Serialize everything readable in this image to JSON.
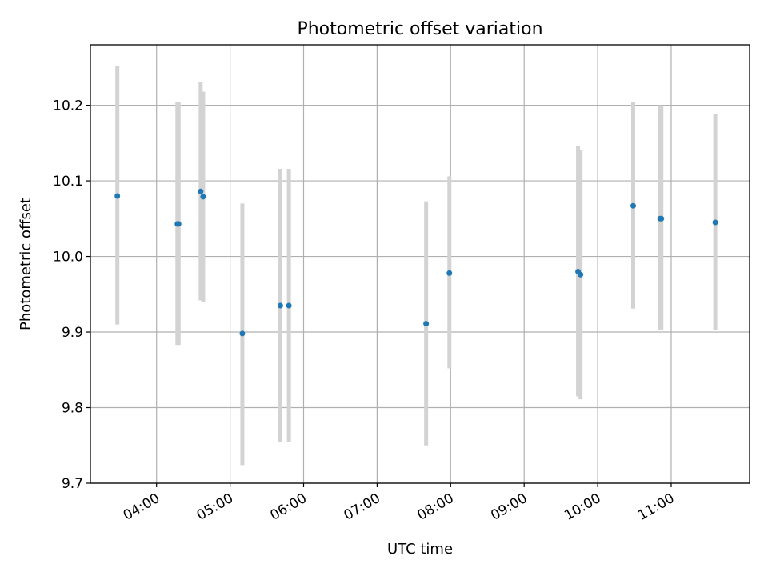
{
  "chart_data": {
    "type": "scatter",
    "title": "Photometric offset variation",
    "xlabel": "UTC time",
    "ylabel": "Photometric offset",
    "x_ticks": [
      "04:00",
      "05:00",
      "06:00",
      "07:00",
      "08:00",
      "09:00",
      "10:00",
      "11:00"
    ],
    "y_ticks": [
      "9.7",
      "9.8",
      "9.9",
      "10.0",
      "10.1",
      "10.2"
    ],
    "xlim": [
      "03:06",
      "12:04"
    ],
    "ylim": [
      9.7,
      10.28
    ],
    "grid": true,
    "point_color": "#1f77b4",
    "errorbar_color": "#d3d3d3",
    "points": [
      {
        "x": "03:28",
        "y": 10.08,
        "err_low": 9.91,
        "err_high": 10.252
      },
      {
        "x": "04:17",
        "y": 10.043,
        "err_low": 9.883,
        "err_high": 10.204
      },
      {
        "x": "04:18",
        "y": 10.043,
        "err_low": 9.883,
        "err_high": 10.204
      },
      {
        "x": "04:36",
        "y": 10.086,
        "err_low": 9.942,
        "err_high": 10.231
      },
      {
        "x": "04:38",
        "y": 10.079,
        "err_low": 9.94,
        "err_high": 10.218
      },
      {
        "x": "05:10",
        "y": 9.898,
        "err_low": 9.724,
        "err_high": 10.07
      },
      {
        "x": "05:41",
        "y": 9.935,
        "err_low": 9.755,
        "err_high": 10.116
      },
      {
        "x": "05:48",
        "y": 9.935,
        "err_low": 9.755,
        "err_high": 10.116
      },
      {
        "x": "07:40",
        "y": 9.911,
        "err_low": 9.75,
        "err_high": 10.073
      },
      {
        "x": "07:59",
        "y": 9.978,
        "err_low": 9.852,
        "err_high": 10.106
      },
      {
        "x": "09:44",
        "y": 9.98,
        "err_low": 9.815,
        "err_high": 10.146
      },
      {
        "x": "09:46",
        "y": 9.976,
        "err_low": 9.811,
        "err_high": 10.141
      },
      {
        "x": "10:29",
        "y": 10.067,
        "err_low": 9.931,
        "err_high": 10.204
      },
      {
        "x": "10:51",
        "y": 10.05,
        "err_low": 9.903,
        "err_high": 10.2
      },
      {
        "x": "10:52",
        "y": 10.05,
        "err_low": 9.903,
        "err_high": 10.2
      },
      {
        "x": "11:36",
        "y": 10.045,
        "err_low": 9.903,
        "err_high": 10.188
      }
    ]
  }
}
